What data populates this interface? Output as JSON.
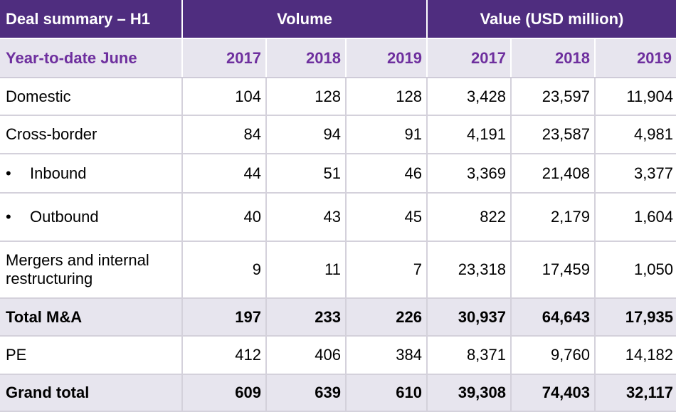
{
  "header": {
    "title": "Deal summary – H1",
    "volume_label": "Volume",
    "value_label": "Value (USD million)"
  },
  "subheader": {
    "period_label": "Year-to-date June",
    "years": [
      "2017",
      "2018",
      "2019",
      "2017",
      "2018",
      "2019"
    ]
  },
  "rows": [
    {
      "label": "Domestic",
      "values": [
        "104",
        "128",
        "128",
        "3,428",
        "23,597",
        "11,904"
      ]
    },
    {
      "label": "Cross-border",
      "values": [
        "84",
        "94",
        "91",
        "4,191",
        "23,587",
        "4,981"
      ]
    },
    {
      "label": "Inbound",
      "bullet": "•",
      "values": [
        "44",
        "51",
        "46",
        "3,369",
        "21,408",
        "3,377"
      ]
    },
    {
      "label": "Outbound",
      "bullet": "•",
      "values": [
        "40",
        "43",
        "45",
        "822",
        "2,179",
        "1,604"
      ]
    },
    {
      "label_line1": "Mergers and internal",
      "label_line2": "restructuring",
      "values": [
        "9",
        "11",
        "7",
        "23,318",
        "17,459",
        "1,050"
      ]
    },
    {
      "label": "Total M&A",
      "values": [
        "197",
        "233",
        "226",
        "30,937",
        "64,643",
        "17,935"
      ]
    },
    {
      "label": "PE",
      "values": [
        "412",
        "406",
        "384",
        "8,371",
        "9,760",
        "14,182"
      ]
    },
    {
      "label": "Grand total",
      "values": [
        "609",
        "639",
        "610",
        "39,308",
        "74,403",
        "32,117"
      ]
    }
  ],
  "colors": {
    "header_bg": "#4f2d7f",
    "subheader_text": "#6e2f9e",
    "shaded_row_bg": "#e7e5ee"
  }
}
